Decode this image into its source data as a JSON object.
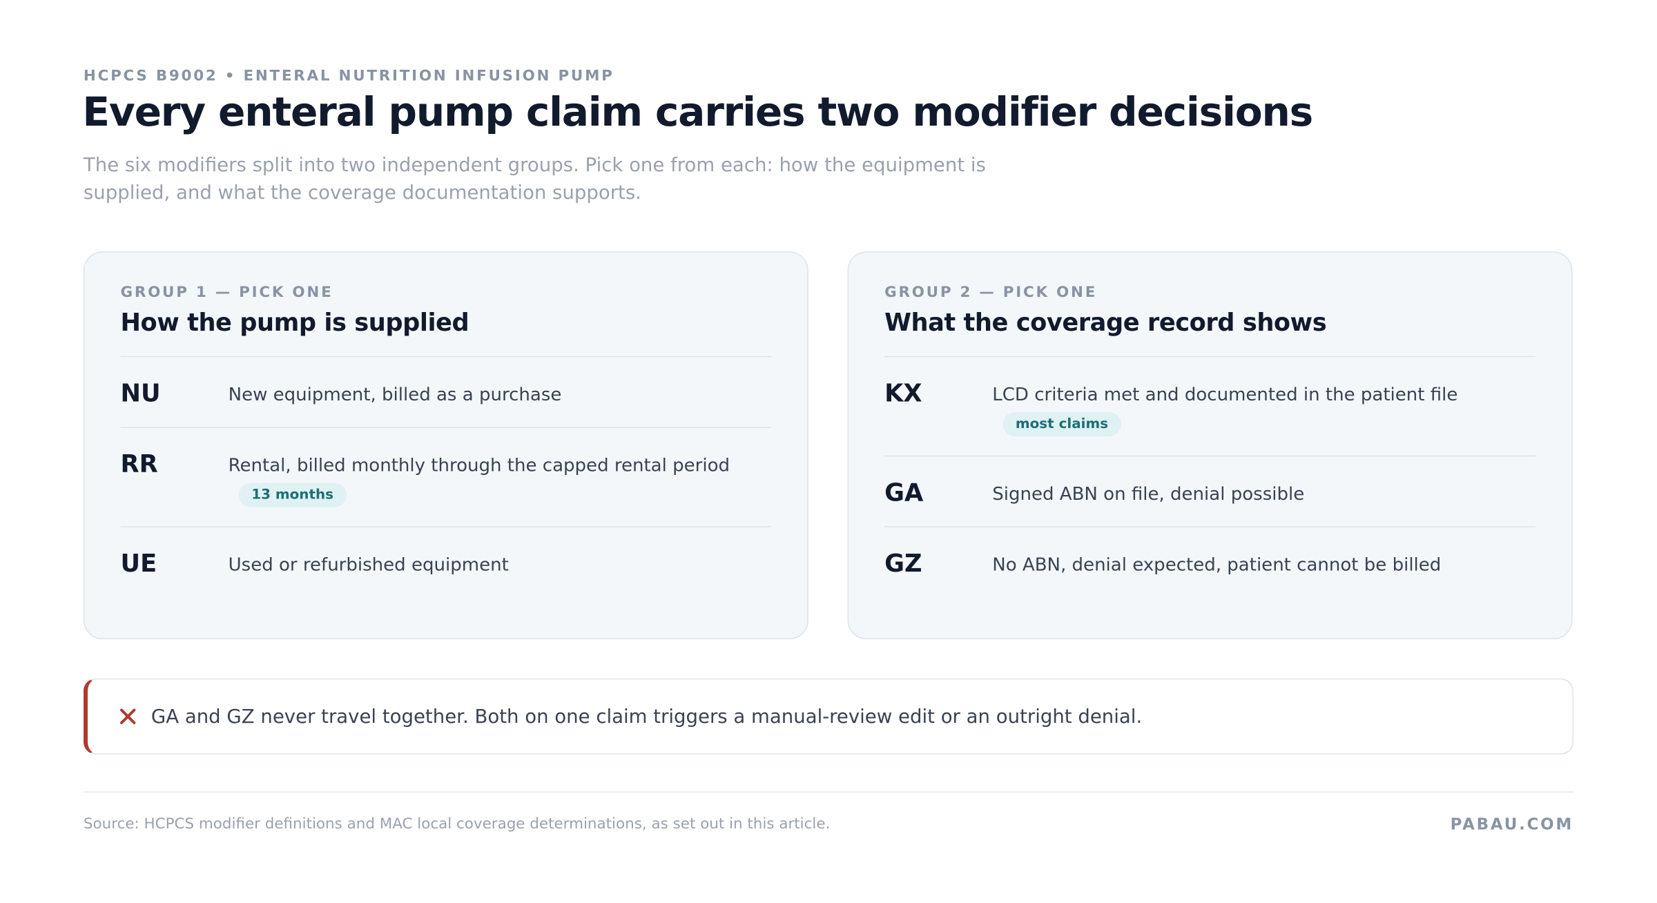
{
  "header": {
    "eyebrow": "HCPCS B9002 • ENTERAL NUTRITION INFUSION PUMP",
    "title": "Every enteral pump claim carries two modifier decisions",
    "subtitle": "The six modifiers split into two independent groups. Pick one from each: how the equipment is supplied, and what the coverage documentation supports."
  },
  "groups": [
    {
      "label": "GROUP 1 — PICK ONE",
      "heading": "How the pump is supplied",
      "rows": [
        {
          "code": "NU",
          "description": "New equipment, billed as a purchase"
        },
        {
          "code": "RR",
          "description": "Rental, billed monthly through the capped rental period",
          "tag": "13 months"
        },
        {
          "code": "UE",
          "description": "Used or refurbished equipment"
        }
      ]
    },
    {
      "label": "GROUP 2 — PICK ONE",
      "heading": "What the coverage record shows",
      "rows": [
        {
          "code": "KX",
          "description": "LCD criteria met and documented in the patient file",
          "tag": "most claims"
        },
        {
          "code": "GA",
          "description": "Signed ABN on file, denial possible"
        },
        {
          "code": "GZ",
          "description": "No ABN, denial expected, patient cannot be billed"
        }
      ]
    }
  ],
  "alert": {
    "text": "GA and GZ never travel together. Both on one claim triggers a manual-review edit or an outright denial."
  },
  "footer": {
    "source": "Source: HCPCS modifier definitions and MAC local coverage determinations, as set out in this article.",
    "brand": "PABAU.COM"
  }
}
